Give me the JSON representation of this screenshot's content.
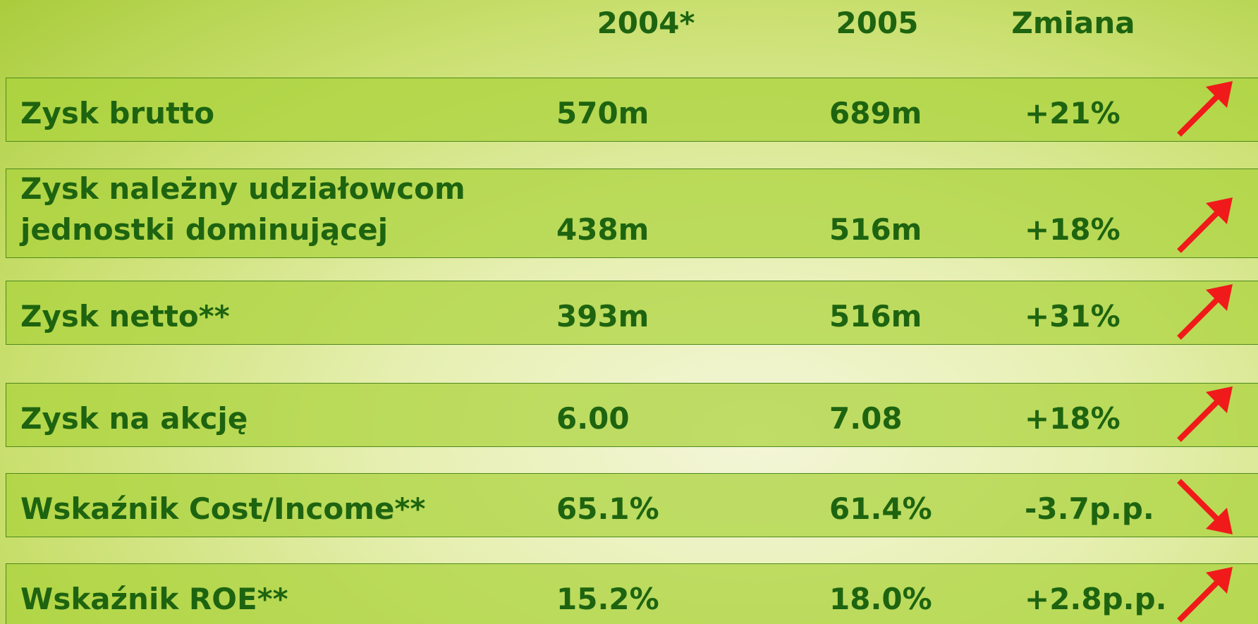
{
  "header": [
    "2004*",
    "2005",
    "Zmiana"
  ],
  "rows": [
    {
      "label": [
        "Zysk brutto"
      ],
      "values": [
        "570m",
        "689m",
        "+21%"
      ]
    },
    {
      "label": [
        "Zysk należny udziałowcom",
        "jednostki dominującej"
      ],
      "values": [
        "438m",
        "516m",
        "+18%"
      ]
    },
    {
      "label": [
        "Zysk netto**"
      ],
      "values": [
        "393m",
        "516m",
        "+31%"
      ]
    },
    {
      "label": [
        "Zysk na akcję"
      ],
      "values": [
        "6.00",
        "7.08",
        "+18%"
      ]
    },
    {
      "label": [
        "Wskaźnik Cost/Income**"
      ],
      "values": [
        "65.1%",
        "61.4%",
        "-3.7p.p."
      ]
    },
    {
      "label": [
        "Wskaźnik ROE**"
      ],
      "values": [
        "15.2%",
        "18.0%",
        "+2.8p.p."
      ]
    }
  ]
}
